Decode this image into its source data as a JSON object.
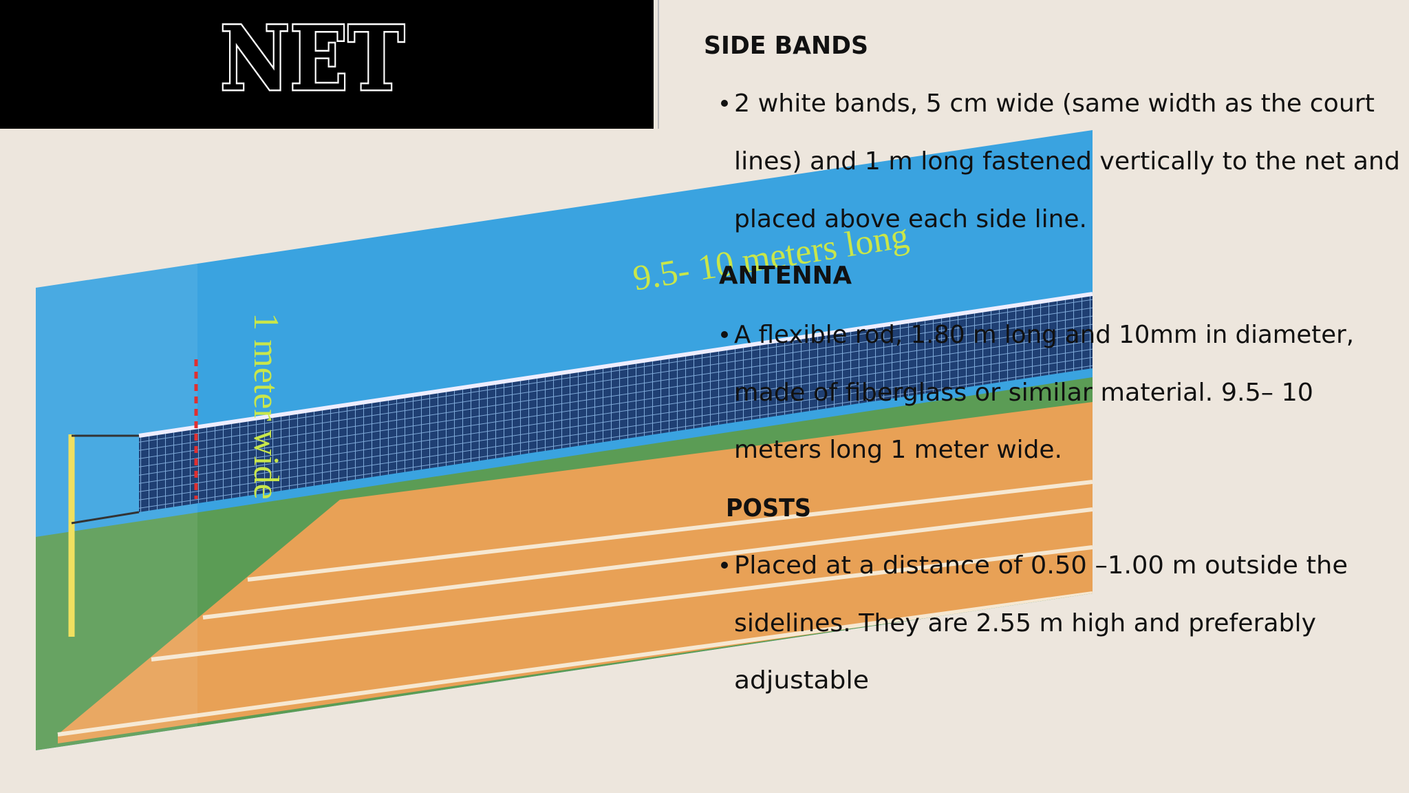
{
  "header": {
    "title": "NET"
  },
  "image": {
    "labels": [
      "9.5- 10 meters long",
      "1 meter wide"
    ]
  },
  "sections": [
    {
      "heading": "SIDE BANDS",
      "lines": [
        "2 white bands, 5 cm wide (same width as the court",
        "lines) and 1 m long fastened vertically to the net and",
        "placed above each side line."
      ]
    },
    {
      "heading": "ANTENNA",
      "lines": [
        "A flexible rod, 1.80 m long and 10mm in diameter,",
        "made of fiberglass or similar material. 9.5– 10",
        "meters long 1 meter wide."
      ]
    },
    {
      "heading": "POSTS",
      "lines": [
        "Placed at a distance of 0.50 –1.00 m outside the",
        "sidelines. They are 2.55 m high and preferably",
        "adjustable"
      ]
    }
  ]
}
